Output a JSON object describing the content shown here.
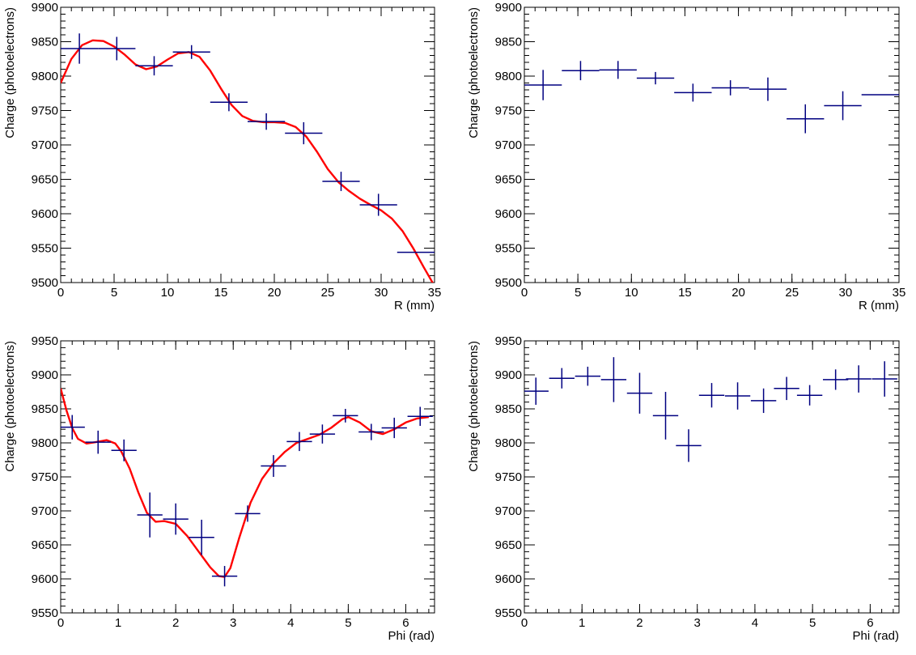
{
  "chart_data": [
    {
      "type": "scatter",
      "id": "top-left",
      "title": "",
      "xlabel": "R (mm)",
      "ylabel": "Charge (photoelectrons)",
      "xlim": [
        0,
        35
      ],
      "ylim": [
        9500,
        9900
      ],
      "x_ticks": [
        0,
        5,
        10,
        15,
        20,
        25,
        30,
        35
      ],
      "y_ticks": [
        9500,
        9550,
        9600,
        9650,
        9700,
        9750,
        9800,
        9850,
        9900
      ],
      "x_tick_labels": [
        "0",
        "5",
        "10",
        "15",
        "20",
        "25",
        "30",
        "35"
      ],
      "y_tick_labels": [
        "9500",
        "9550",
        "9600",
        "9650",
        "9700",
        "9750",
        "9800",
        "9850",
        "9900"
      ],
      "points": {
        "x": [
          1.75,
          5.25,
          8.75,
          12.25,
          15.75,
          19.25,
          22.75,
          26.25,
          29.75,
          33.25
        ],
        "y": [
          9840,
          9840,
          9815,
          9835,
          9762,
          9734,
          9717,
          9647,
          9613,
          9544
        ],
        "xerr": 1.75,
        "yerr": [
          22,
          17,
          14,
          10,
          13,
          12,
          16,
          14,
          16,
          0
        ]
      },
      "fit": {
        "x": [
          0,
          1,
          2,
          3,
          4,
          5,
          6,
          7,
          8,
          9,
          10,
          11,
          12,
          13,
          14,
          15,
          16,
          17,
          18,
          19,
          20,
          21,
          22,
          23,
          24,
          25,
          26,
          27,
          28,
          29,
          30,
          31,
          32,
          33,
          34,
          35
        ],
        "y": [
          9790,
          9825,
          9845,
          9852,
          9851,
          9843,
          9831,
          9817,
          9810,
          9814,
          9824,
          9833,
          9835,
          9828,
          9808,
          9782,
          9758,
          9742,
          9735,
          9733,
          9733,
          9732,
          9726,
          9712,
          9690,
          9665,
          9646,
          9633,
          9622,
          9613,
          9605,
          9593,
          9575,
          9550,
          9522,
          9495
        ]
      },
      "grid": false,
      "legend": "none",
      "colors": {
        "points": "#000080",
        "fit": "#ff0000"
      }
    },
    {
      "type": "scatter",
      "id": "top-right",
      "title": "",
      "xlabel": "R (mm)",
      "ylabel": "Charge (photoelectrons)",
      "xlim": [
        0,
        35
      ],
      "ylim": [
        9500,
        9900
      ],
      "x_ticks": [
        0,
        5,
        10,
        15,
        20,
        25,
        30,
        35
      ],
      "y_ticks": [
        9500,
        9550,
        9600,
        9650,
        9700,
        9750,
        9800,
        9850,
        9900
      ],
      "x_tick_labels": [
        "0",
        "5",
        "10",
        "15",
        "20",
        "25",
        "30",
        "35"
      ],
      "y_tick_labels": [
        "9500",
        "9550",
        "9600",
        "9650",
        "9700",
        "9750",
        "9800",
        "9850",
        "9900"
      ],
      "points": {
        "x": [
          1.75,
          5.25,
          8.75,
          12.25,
          15.75,
          19.25,
          22.75,
          26.25,
          29.75,
          33.25
        ],
        "y": [
          9787,
          9808,
          9809,
          9797,
          9776,
          9783,
          9781,
          9738,
          9757,
          9773
        ],
        "xerr": 1.75,
        "yerr": [
          22,
          14,
          13,
          9,
          13,
          11,
          17,
          21,
          21,
          0
        ]
      },
      "grid": false,
      "legend": "none",
      "colors": {
        "points": "#000080"
      }
    },
    {
      "type": "scatter",
      "id": "bottom-left",
      "title": "",
      "xlabel": "Phi (rad)",
      "ylabel": "Charge (photoelectrons)",
      "xlim": [
        0,
        6.5
      ],
      "ylim": [
        9550,
        9950
      ],
      "x_ticks": [
        0,
        1,
        2,
        3,
        4,
        5,
        6
      ],
      "y_ticks": [
        9550,
        9600,
        9650,
        9700,
        9750,
        9800,
        9850,
        9900,
        9950
      ],
      "x_tick_labels": [
        "0",
        "1",
        "2",
        "3",
        "4",
        "5",
        "6"
      ],
      "y_tick_labels": [
        "9550",
        "9600",
        "9650",
        "9700",
        "9750",
        "9800",
        "9850",
        "9900",
        "9950"
      ],
      "points": {
        "x": [
          0.2,
          0.65,
          1.1,
          1.55,
          2.0,
          2.45,
          2.85,
          3.25,
          3.7,
          4.15,
          4.55,
          4.95,
          5.4,
          5.8,
          6.25
        ],
        "y": [
          9823,
          9801,
          9789,
          9694,
          9688,
          9661,
          9604,
          9696,
          9766,
          9802,
          9813,
          9840,
          9816,
          9822,
          9839
        ],
        "xerr": 0.22,
        "yerr": [
          18,
          17,
          16,
          33,
          23,
          26,
          15,
          12,
          16,
          14,
          14,
          10,
          12,
          15,
          14
        ]
      },
      "fit": {
        "x": [
          0,
          0.1,
          0.2,
          0.3,
          0.45,
          0.6,
          0.8,
          0.95,
          1.05,
          1.2,
          1.35,
          1.5,
          1.65,
          1.8,
          2.0,
          2.2,
          2.4,
          2.6,
          2.75,
          2.85,
          2.95,
          3.1,
          3.3,
          3.5,
          3.7,
          3.9,
          4.1,
          4.3,
          4.5,
          4.7,
          4.9,
          5.0,
          5.2,
          5.4,
          5.6,
          5.8,
          6.0,
          6.2,
          6.4
        ],
        "y": [
          9880,
          9848,
          9822,
          9806,
          9799,
          9801,
          9804,
          9799,
          9788,
          9762,
          9727,
          9697,
          9684,
          9685,
          9681,
          9663,
          9640,
          9617,
          9604,
          9603,
          9616,
          9659,
          9712,
          9747,
          9770,
          9787,
          9800,
          9806,
          9812,
          9822,
          9835,
          9838,
          9830,
          9817,
          9813,
          9820,
          9830,
          9836,
          9838
        ]
      },
      "grid": false,
      "legend": "none",
      "colors": {
        "points": "#000080",
        "fit": "#ff0000"
      }
    },
    {
      "type": "scatter",
      "id": "bottom-right",
      "title": "",
      "xlabel": "Phi (rad)",
      "ylabel": "Charge (photoelectrons)",
      "xlim": [
        0,
        6.5
      ],
      "ylim": [
        9550,
        9950
      ],
      "x_ticks": [
        0,
        1,
        2,
        3,
        4,
        5,
        6
      ],
      "y_ticks": [
        9550,
        9600,
        9650,
        9700,
        9750,
        9800,
        9850,
        9900,
        9950
      ],
      "x_tick_labels": [
        "0",
        "1",
        "2",
        "3",
        "4",
        "5",
        "6"
      ],
      "y_tick_labels": [
        "9550",
        "9600",
        "9650",
        "9700",
        "9750",
        "9800",
        "9850",
        "9900",
        "9950"
      ],
      "points": {
        "x": [
          0.2,
          0.65,
          1.1,
          1.55,
          2.0,
          2.45,
          2.85,
          3.25,
          3.7,
          4.15,
          4.55,
          4.95,
          5.4,
          5.8,
          6.25
        ],
        "y": [
          9876,
          9895,
          9898,
          9893,
          9873,
          9840,
          9796,
          9870,
          9869,
          9862,
          9880,
          9870,
          9893,
          9894,
          9894
        ],
        "xerr": 0.22,
        "yerr": [
          20,
          15,
          14,
          33,
          30,
          35,
          24,
          18,
          20,
          18,
          17,
          15,
          15,
          20,
          26
        ]
      },
      "grid": false,
      "legend": "none",
      "colors": {
        "points": "#000080"
      }
    }
  ]
}
